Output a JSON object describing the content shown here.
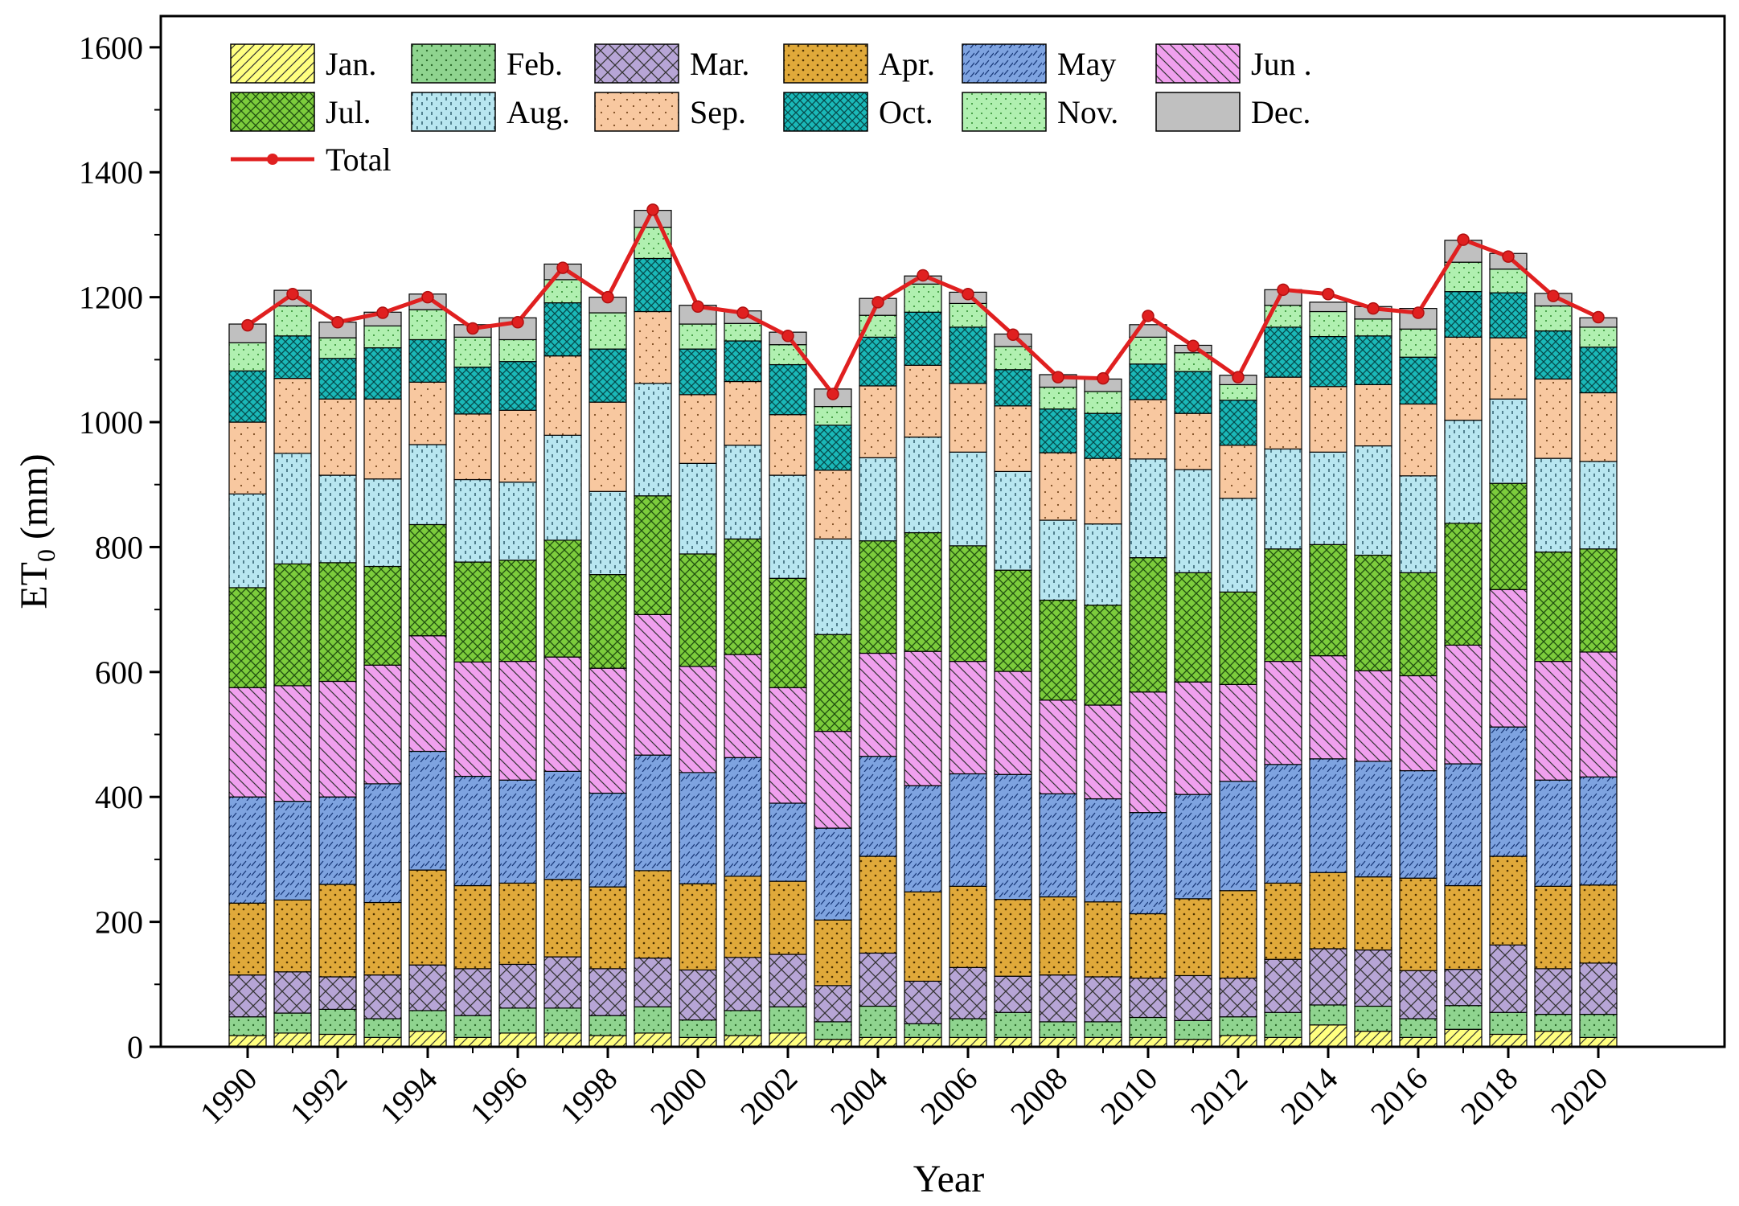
{
  "chart_data": {
    "type": "bar",
    "stacked": true,
    "xlabel": "Year",
    "ylabel_main": "ET",
    "ylabel_sub": "0",
    "ylabel_unit": " (mm)",
    "ylim": [
      0,
      1650
    ],
    "yticks": [
      0,
      200,
      400,
      600,
      800,
      1000,
      1200,
      1400,
      1600
    ],
    "xtick_labels": [
      "1990",
      "1992",
      "1994",
      "1996",
      "1998",
      "2000",
      "2002",
      "2004",
      "2006",
      "2008",
      "2010",
      "2012",
      "2014",
      "2016",
      "2018",
      "2020"
    ],
    "legend_position": "top-left",
    "categories": [
      1990,
      1991,
      1992,
      1993,
      1994,
      1995,
      1996,
      1997,
      1998,
      1999,
      2000,
      2001,
      2002,
      2003,
      2004,
      2005,
      2006,
      2007,
      2008,
      2009,
      2010,
      2011,
      2012,
      2013,
      2014,
      2015,
      2016,
      2017,
      2018,
      2019,
      2020
    ],
    "series": [
      {
        "name": "Jan.",
        "color": "#ffff80",
        "pattern": "diag-up",
        "values": [
          18,
          22,
          20,
          15,
          25,
          15,
          22,
          22,
          18,
          22,
          15,
          18,
          22,
          12,
          15,
          15,
          15,
          15,
          15,
          15,
          15,
          12,
          18,
          15,
          35,
          25,
          15,
          28,
          20,
          25,
          15
        ]
      },
      {
        "name": "Feb.",
        "color": "#8fd48f",
        "pattern": "dots",
        "values": [
          30,
          32,
          40,
          30,
          33,
          35,
          40,
          40,
          32,
          42,
          28,
          40,
          42,
          28,
          50,
          22,
          30,
          40,
          25,
          25,
          32,
          30,
          30,
          40,
          32,
          40,
          30,
          38,
          35,
          27,
          37
        ]
      },
      {
        "name": "Mar.",
        "color": "#b7a5d6",
        "pattern": "cross",
        "values": [
          67,
          66,
          52,
          70,
          73,
          75,
          70,
          82,
          75,
          78,
          80,
          85,
          84,
          58,
          85,
          68,
          82,
          58,
          75,
          72,
          63,
          72,
          62,
          85,
          90,
          90,
          77,
          58,
          108,
          73,
          82
        ]
      },
      {
        "name": "Apr.",
        "color": "#e0a93a",
        "pattern": "dots-dark",
        "values": [
          115,
          115,
          148,
          116,
          152,
          133,
          130,
          124,
          131,
          140,
          138,
          130,
          117,
          105,
          155,
          143,
          130,
          123,
          125,
          120,
          103,
          123,
          140,
          122,
          122,
          117,
          148,
          134,
          142,
          132,
          125
        ]
      },
      {
        "name": "May",
        "color": "#7ea3e0",
        "pattern": "dashes",
        "values": [
          170,
          158,
          140,
          190,
          190,
          175,
          165,
          173,
          150,
          185,
          178,
          190,
          125,
          147,
          160,
          170,
          180,
          200,
          165,
          165,
          162,
          167,
          175,
          190,
          182,
          185,
          172,
          195,
          207,
          170,
          173
        ]
      },
      {
        "name": "Jun .",
        "color": "#f0a0ee",
        "pattern": "diag-down",
        "values": [
          175,
          185,
          185,
          190,
          185,
          183,
          190,
          183,
          200,
          225,
          170,
          165,
          185,
          155,
          165,
          215,
          180,
          165,
          150,
          150,
          193,
          180,
          155,
          165,
          165,
          145,
          152,
          190,
          220,
          190,
          200
        ]
      },
      {
        "name": "Jul.",
        "color": "#7ccc3c",
        "pattern": "weave",
        "values": [
          160,
          195,
          190,
          158,
          178,
          160,
          162,
          187,
          150,
          190,
          180,
          185,
          175,
          155,
          180,
          190,
          185,
          162,
          160,
          160,
          215,
          175,
          148,
          180,
          178,
          185,
          165,
          195,
          170,
          175,
          165
        ]
      },
      {
        "name": "Aug.",
        "color": "#b8e6f0",
        "pattern": "vdash",
        "values": [
          150,
          177,
          140,
          140,
          128,
          132,
          125,
          168,
          133,
          180,
          145,
          150,
          165,
          153,
          133,
          153,
          150,
          158,
          128,
          130,
          158,
          165,
          150,
          160,
          148,
          175,
          155,
          165,
          135,
          150,
          140
        ]
      },
      {
        "name": "Sep.",
        "color": "#f8c8a0",
        "pattern": "sparse-dots",
        "values": [
          115,
          120,
          122,
          128,
          100,
          105,
          115,
          127,
          143,
          115,
          110,
          102,
          97,
          110,
          115,
          115,
          110,
          105,
          108,
          105,
          95,
          90,
          85,
          115,
          105,
          98,
          115,
          133,
          98,
          127,
          110
        ]
      },
      {
        "name": "Oct.",
        "color": "#1ab8b8",
        "pattern": "cross-dark",
        "values": [
          82,
          68,
          65,
          82,
          68,
          75,
          78,
          85,
          85,
          85,
          73,
          65,
          80,
          72,
          78,
          85,
          90,
          58,
          70,
          72,
          57,
          67,
          72,
          80,
          80,
          78,
          75,
          73,
          72,
          77,
          73
        ]
      },
      {
        "name": "Nov.",
        "color": "#b0f0b0",
        "pattern": "fine-dots",
        "values": [
          45,
          48,
          33,
          35,
          48,
          48,
          35,
          37,
          58,
          50,
          40,
          28,
          32,
          30,
          35,
          45,
          38,
          37,
          35,
          35,
          43,
          30,
          25,
          35,
          40,
          27,
          45,
          47,
          38,
          40,
          32
        ]
      },
      {
        "name": "Dec.",
        "color": "#c0c0c0",
        "pattern": "none",
        "values": [
          30,
          25,
          25,
          22,
          25,
          20,
          35,
          25,
          25,
          27,
          30,
          20,
          20,
          28,
          27,
          13,
          18,
          20,
          20,
          20,
          20,
          12,
          15,
          25,
          15,
          20,
          33,
          35,
          25,
          20,
          15
        ]
      }
    ],
    "total": {
      "name": "Total",
      "color": "#e02020",
      "values": [
        1155,
        1205,
        1160,
        1175,
        1200,
        1150,
        1160,
        1247,
        1200,
        1340,
        1185,
        1175,
        1138,
        1045,
        1192,
        1235,
        1205,
        1140,
        1072,
        1070,
        1170,
        1122,
        1072,
        1212,
        1205,
        1182,
        1175,
        1292,
        1265,
        1202,
        1168
      ]
    }
  }
}
